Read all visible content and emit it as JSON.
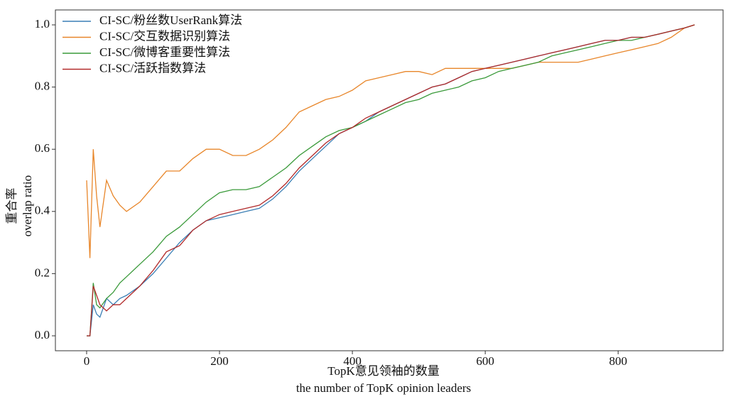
{
  "chart_data": {
    "type": "line",
    "xlabel": [
      "TopK意见领袖的数量",
      "the number of TopK opinion leaders"
    ],
    "ylabel": [
      "重合率",
      "overlap ratio"
    ],
    "x": [
      0,
      5,
      10,
      15,
      20,
      30,
      40,
      50,
      60,
      80,
      100,
      120,
      140,
      160,
      180,
      200,
      220,
      240,
      260,
      280,
      300,
      320,
      340,
      360,
      380,
      400,
      420,
      440,
      460,
      480,
      500,
      520,
      540,
      560,
      580,
      600,
      620,
      640,
      660,
      680,
      700,
      720,
      740,
      760,
      780,
      800,
      820,
      840,
      860,
      880,
      900,
      915
    ],
    "series": [
      {
        "name": "CI-SC/粉丝数UserRank算法",
        "color": "#3a7fb5",
        "values": [
          0,
          0,
          0.1,
          0.07,
          0.06,
          0.12,
          0.1,
          0.12,
          0.13,
          0.16,
          0.2,
          0.25,
          0.3,
          0.34,
          0.37,
          0.38,
          0.39,
          0.4,
          0.41,
          0.44,
          0.48,
          0.53,
          0.57,
          0.61,
          0.65,
          0.67,
          0.69,
          0.72,
          0.74,
          0.76,
          0.78,
          0.8,
          0.81,
          0.83,
          0.85,
          0.86,
          0.87,
          0.88,
          0.89,
          0.9,
          0.91,
          0.92,
          0.93,
          0.94,
          0.95,
          0.95,
          0.96,
          0.96,
          0.97,
          0.98,
          0.99,
          1.0
        ]
      },
      {
        "name": "CI-SC/交互数据识别算法",
        "color": "#e8862a",
        "values": [
          0.5,
          0.25,
          0.6,
          0.45,
          0.35,
          0.5,
          0.45,
          0.42,
          0.4,
          0.43,
          0.48,
          0.53,
          0.53,
          0.57,
          0.6,
          0.6,
          0.58,
          0.58,
          0.6,
          0.63,
          0.67,
          0.72,
          0.74,
          0.76,
          0.77,
          0.79,
          0.82,
          0.83,
          0.84,
          0.85,
          0.85,
          0.84,
          0.86,
          0.86,
          0.86,
          0.86,
          0.86,
          0.86,
          0.87,
          0.88,
          0.88,
          0.88,
          0.88,
          0.89,
          0.9,
          0.91,
          0.92,
          0.93,
          0.94,
          0.96,
          0.99,
          1.0
        ]
      },
      {
        "name": "CI-SC/微博客重要性算法",
        "color": "#3a9a3a",
        "values": [
          0,
          0,
          0.17,
          0.1,
          0.09,
          0.12,
          0.14,
          0.17,
          0.19,
          0.23,
          0.27,
          0.32,
          0.35,
          0.39,
          0.43,
          0.46,
          0.47,
          0.47,
          0.48,
          0.51,
          0.54,
          0.58,
          0.61,
          0.64,
          0.66,
          0.67,
          0.69,
          0.71,
          0.73,
          0.75,
          0.76,
          0.78,
          0.79,
          0.8,
          0.82,
          0.83,
          0.85,
          0.86,
          0.87,
          0.88,
          0.9,
          0.91,
          0.92,
          0.93,
          0.94,
          0.95,
          0.95,
          0.96,
          0.97,
          0.98,
          0.99,
          1.0
        ]
      },
      {
        "name": "CI-SC/活跃指数算法",
        "color": "#b22a2a",
        "values": [
          0,
          0,
          0.16,
          0.13,
          0.1,
          0.08,
          0.1,
          0.1,
          0.12,
          0.16,
          0.21,
          0.27,
          0.29,
          0.34,
          0.37,
          0.39,
          0.4,
          0.41,
          0.42,
          0.45,
          0.49,
          0.54,
          0.58,
          0.62,
          0.65,
          0.67,
          0.7,
          0.72,
          0.74,
          0.76,
          0.78,
          0.8,
          0.81,
          0.83,
          0.85,
          0.86,
          0.87,
          0.88,
          0.89,
          0.9,
          0.91,
          0.92,
          0.93,
          0.94,
          0.95,
          0.95,
          0.96,
          0.96,
          0.97,
          0.98,
          0.99,
          1.0
        ]
      }
    ],
    "xlim": [
      -47,
      958
    ],
    "ylim": [
      -0.048,
      1.048
    ],
    "xticks": [
      0,
      200,
      400,
      600,
      800
    ],
    "yticks": [
      {
        "value": 0,
        "label": "0.0"
      },
      0.2,
      0.4,
      0.6,
      0.8,
      {
        "value": 1,
        "label": "1.0"
      }
    ],
    "legend": "upper left",
    "grid": false
  }
}
